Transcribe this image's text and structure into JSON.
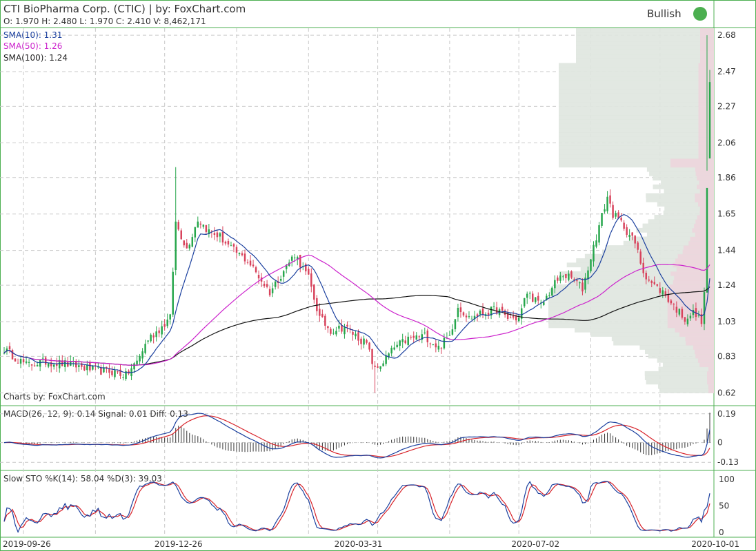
{
  "header": {
    "title": "CTI BioPharma Corp. (CTIC) | by: FoxChart.com",
    "ohlc": "O: 1.970 H: 2.480 L: 1.970 C: 2.410 V: 8,462,171",
    "signal_label": "Bullish",
    "signal_color": "#4caf50"
  },
  "legend": {
    "sma10": "SMA(10): 1.31",
    "sma50": "SMA(50): 1.26",
    "sma100": "SMA(100): 1.24"
  },
  "watermark": "Charts by: FoxChart.com",
  "macd_label": "MACD(26, 12, 9): 0.14 Signal: 0.01 Diff: 0.13",
  "sto_label": "Slow STO %K(14): 58.04 %D(3): 39.03",
  "colors": {
    "up": "#26a64b",
    "down": "#d8435c",
    "sma10": "#1a3f9e",
    "sma50": "#cc22cc",
    "sma100": "#111111",
    "macd": "#1a3f9e",
    "signal": "#d8232a",
    "hist": "#333333",
    "vp_gray": "#dfe6df",
    "vp_pink": "#ecd6dc",
    "frame": "#4caf50"
  },
  "chart_data": [
    {
      "type": "candlestick",
      "title": "CTI BioPharma Corp. (CTIC)",
      "x_ticks": [
        "2019-09-26",
        "2019-12-26",
        "2020-03-31",
        "2020-07-02",
        "2020-10-01"
      ],
      "y_ticks": [
        0.62,
        0.83,
        1.03,
        1.24,
        1.44,
        1.65,
        1.86,
        2.06,
        2.27,
        2.47,
        2.68
      ],
      "ylim": [
        0.55,
        2.72
      ],
      "num_bars": 256,
      "close_anchors": [
        [
          0,
          0.87
        ],
        [
          8,
          0.78
        ],
        [
          15,
          0.8
        ],
        [
          25,
          0.78
        ],
        [
          33,
          0.75
        ],
        [
          40,
          0.74
        ],
        [
          44,
          0.72
        ],
        [
          48,
          0.8
        ],
        [
          52,
          0.93
        ],
        [
          57,
          1.0
        ],
        [
          60,
          1.05
        ],
        [
          62,
          1.6
        ],
        [
          66,
          1.45
        ],
        [
          70,
          1.62
        ],
        [
          74,
          1.55
        ],
        [
          78,
          1.52
        ],
        [
          82,
          1.45
        ],
        [
          88,
          1.38
        ],
        [
          96,
          1.2
        ],
        [
          100,
          1.3
        ],
        [
          105,
          1.42
        ],
        [
          110,
          1.28
        ],
        [
          114,
          1.05
        ],
        [
          118,
          0.98
        ],
        [
          123,
          1.0
        ],
        [
          127,
          0.95
        ],
        [
          131,
          0.9
        ],
        [
          134,
          0.75
        ],
        [
          137,
          0.8
        ],
        [
          141,
          0.88
        ],
        [
          146,
          0.93
        ],
        [
          152,
          0.95
        ],
        [
          157,
          0.88
        ],
        [
          161,
          0.95
        ],
        [
          164,
          1.12
        ],
        [
          168,
          1.05
        ],
        [
          173,
          1.08
        ],
        [
          178,
          1.1
        ],
        [
          182,
          1.05
        ],
        [
          186,
          1.05
        ],
        [
          189,
          1.2
        ],
        [
          194,
          1.12
        ],
        [
          199,
          1.25
        ],
        [
          202,
          1.3
        ],
        [
          206,
          1.27
        ],
        [
          209,
          1.22
        ],
        [
          212,
          1.4
        ],
        [
          215,
          1.58
        ],
        [
          218,
          1.75
        ],
        [
          220,
          1.65
        ],
        [
          224,
          1.58
        ],
        [
          228,
          1.48
        ],
        [
          231,
          1.32
        ],
        [
          234,
          1.25
        ],
        [
          238,
          1.2
        ],
        [
          242,
          1.12
        ],
        [
          246,
          1.05
        ],
        [
          249,
          1.08
        ],
        [
          251,
          1.05
        ],
        [
          252,
          1.04
        ],
        [
          253,
          1.2
        ],
        [
          254,
          1.8
        ],
        [
          255,
          2.41
        ]
      ],
      "last_bar": {
        "open": 1.97,
        "high": 2.48,
        "low": 1.97,
        "close": 2.41,
        "volume": 8462171
      },
      "series": [
        {
          "name": "SMA(10)",
          "last": 1.31
        },
        {
          "name": "SMA(50)",
          "last": 1.26
        },
        {
          "name": "SMA(100)",
          "last": 1.24
        }
      ]
    },
    {
      "type": "line",
      "title": "MACD(26, 12, 9)",
      "y_ticks": [
        0.19,
        0,
        -0.13
      ],
      "ylim": [
        -0.17,
        0.23
      ],
      "series": [
        {
          "name": "MACD",
          "last": 0.14
        },
        {
          "name": "Signal",
          "last": 0.01
        },
        {
          "name": "Diff",
          "last": 0.13
        }
      ]
    },
    {
      "type": "line",
      "title": "Slow STO %K(14) %D(3)",
      "y_ticks": [
        100,
        50,
        0
      ],
      "ylim": [
        -5,
        108
      ],
      "series": [
        {
          "name": "%K",
          "last": 58.04
        },
        {
          "name": "%D",
          "last": 39.03
        }
      ]
    }
  ]
}
